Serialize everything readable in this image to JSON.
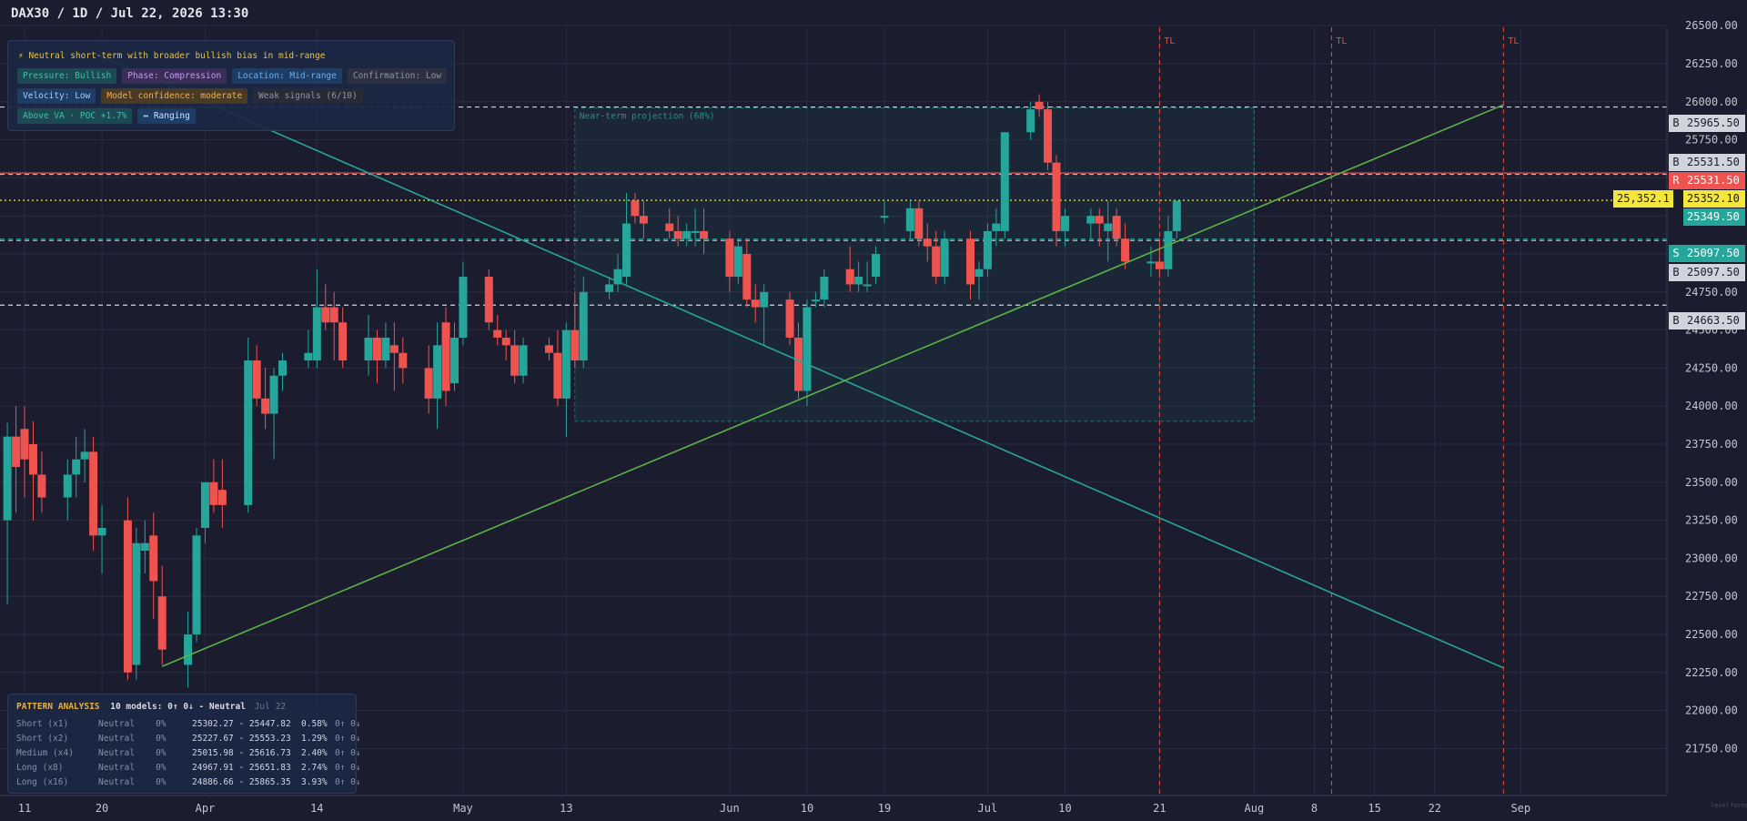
{
  "header": {
    "title": "DAX30 / 1D / Jul 22, 2026 13:30"
  },
  "info_panel": {
    "headline": "⚡ Neutral short-term with broader bullish bias in mid-range",
    "tag_rows": [
      [
        {
          "label": "Pressure: Bullish",
          "style": "pressure"
        },
        {
          "label": "Phase: Compression",
          "style": "phase"
        },
        {
          "label": "Location: Mid-range",
          "style": "location"
        },
        {
          "label": "Confirmation: Low",
          "style": "confirm"
        }
      ],
      [
        {
          "label": "Velocity: Low",
          "style": "velocity"
        },
        {
          "label": "Model confidence: moderate",
          "style": "conf"
        },
        {
          "label": "Weak signals (6/10)",
          "style": "weak"
        }
      ],
      [
        {
          "label": "Above VA · POC +1.7%",
          "style": "va"
        },
        {
          "label": "↔ Ranging",
          "style": "ranging"
        }
      ]
    ]
  },
  "pattern_panel": {
    "title": "PATTERN ANALYSIS",
    "summary": "10 models: 0↑ 0↓ - Neutral",
    "date": "Jul 22",
    "rows": [
      {
        "name": "Short (x1)",
        "direction": "Neutral",
        "pct": "0%",
        "range": "25302.27 - 25447.82",
        "width": "0.58%",
        "arrows": "0↑ 0↓"
      },
      {
        "name": "Short (x2)",
        "direction": "Neutral",
        "pct": "0%",
        "range": "25227.67 - 25553.23",
        "width": "1.29%",
        "arrows": "0↑ 0↓"
      },
      {
        "name": "Medium (x4)",
        "direction": "Neutral",
        "pct": "0%",
        "range": "25015.98 - 25616.73",
        "width": "2.40%",
        "arrows": "0↑ 0↓"
      },
      {
        "name": "Long (x8)",
        "direction": "Neutral",
        "pct": "0%",
        "range": "24967.91 - 25651.83",
        "width": "2.74%",
        "arrows": "0↑ 0↓"
      },
      {
        "name": "Long (x16)",
        "direction": "Neutral",
        "pct": "0%",
        "range": "24886.66 - 25865.35",
        "width": "3.93%",
        "arrows": "0↑ 0↓"
      }
    ]
  },
  "price_labels": [
    {
      "type": "B",
      "value": "25965.50",
      "style": "b"
    },
    {
      "type": "B",
      "value": "25531.50",
      "style": "b"
    },
    {
      "type": "R",
      "value": "25531.50",
      "style": "r"
    },
    {
      "type": "",
      "value": "25352.10",
      "style": "plain"
    },
    {
      "type": "",
      "value": "25349.50",
      "style": "plain"
    },
    {
      "type": "S",
      "value": "25097.50",
      "style": "s"
    },
    {
      "type": "B",
      "value": "25097.50",
      "style": "b"
    },
    {
      "type": "B",
      "value": "24663.50",
      "style": "b"
    }
  ],
  "last_price": "25,352.1",
  "projection_label": "Near-term projection (68%)",
  "tl_labels": [
    "TL",
    "TL",
    "TL"
  ],
  "watermark": "levelforecast.com",
  "chart_data": {
    "type": "candlestick",
    "symbol": "DAX30",
    "timeframe": "1D",
    "y_ticks": [
      21750,
      22000,
      22250,
      22500,
      22750,
      23000,
      23250,
      23500,
      23750,
      24000,
      24250,
      24500,
      24750,
      25000,
      25250,
      25500,
      25750,
      26000,
      26250,
      26500
    ],
    "y_tick_labels": [
      "21750.00",
      "22000.00",
      "22250.00",
      "22500.00",
      "22750.00",
      "23000.00",
      "23250.00",
      "23500.00",
      "23750.00",
      "24000.00",
      "24250.00",
      "24500.00",
      "24750.00",
      "25000.00",
      "25250.00",
      "25500.00",
      "25750.00",
      "26000.00",
      "26250.00",
      "26500.00"
    ],
    "ylim": [
      21550,
      26620
    ],
    "x_labels": [
      {
        "label": "11",
        "date": "2026-03-11"
      },
      {
        "label": "20",
        "date": "2026-03-20"
      },
      {
        "label": "Apr",
        "date": "2026-04-01"
      },
      {
        "label": "14",
        "date": "2026-04-14"
      },
      {
        "label": "May",
        "date": "2026-05-01"
      },
      {
        "label": "13",
        "date": "2026-05-13"
      },
      {
        "label": "Jun",
        "date": "2026-06-01"
      },
      {
        "label": "10",
        "date": "2026-06-10"
      },
      {
        "label": "19",
        "date": "2026-06-19"
      },
      {
        "label": "Jul",
        "date": "2026-07-01"
      },
      {
        "label": "10",
        "date": "2026-07-10"
      },
      {
        "label": "21",
        "date": "2026-07-21"
      },
      {
        "label": "Aug",
        "date": "2026-08-01"
      },
      {
        "label": "8",
        "date": "2026-08-08"
      },
      {
        "label": "15",
        "date": "2026-08-15"
      },
      {
        "label": "22",
        "date": "2026-08-22"
      },
      {
        "label": "Sep",
        "date": "2026-09-01"
      }
    ],
    "candles": [
      {
        "date": "2026-03-09",
        "o": 23250,
        "h": 23890,
        "l": 22700,
        "c": 23800
      },
      {
        "date": "2026-03-10",
        "o": 23800,
        "h": 24000,
        "l": 23300,
        "c": 23600
      },
      {
        "date": "2026-03-11",
        "o": 23850,
        "h": 24000,
        "l": 23400,
        "c": 23650
      },
      {
        "date": "2026-03-12",
        "o": 23750,
        "h": 23900,
        "l": 23250,
        "c": 23550
      },
      {
        "date": "2026-03-13",
        "o": 23550,
        "h": 23700,
        "l": 23300,
        "c": 23400
      },
      {
        "date": "2026-03-16",
        "o": 23400,
        "h": 23650,
        "l": 23250,
        "c": 23550
      },
      {
        "date": "2026-03-17",
        "o": 23550,
        "h": 23800,
        "l": 23400,
        "c": 23650
      },
      {
        "date": "2026-03-18",
        "o": 23650,
        "h": 23850,
        "l": 23500,
        "c": 23700
      },
      {
        "date": "2026-03-19",
        "o": 23700,
        "h": 23800,
        "l": 23050,
        "c": 23150
      },
      {
        "date": "2026-03-20",
        "o": 23150,
        "h": 23350,
        "l": 22900,
        "c": 23200
      },
      {
        "date": "2026-03-23",
        "o": 23250,
        "h": 23400,
        "l": 22200,
        "c": 22250
      },
      {
        "date": "2026-03-24",
        "o": 22300,
        "h": 23200,
        "l": 22200,
        "c": 23100
      },
      {
        "date": "2026-03-25",
        "o": 23050,
        "h": 23250,
        "l": 22900,
        "c": 23100
      },
      {
        "date": "2026-03-26",
        "o": 23150,
        "h": 23300,
        "l": 22600,
        "c": 22850
      },
      {
        "date": "2026-03-27",
        "o": 22750,
        "h": 22950,
        "l": 22300,
        "c": 22400
      },
      {
        "date": "2026-03-30",
        "o": 22300,
        "h": 22650,
        "l": 22150,
        "c": 22500
      },
      {
        "date": "2026-03-31",
        "o": 22500,
        "h": 23200,
        "l": 22450,
        "c": 23150
      },
      {
        "date": "2026-04-01",
        "o": 23200,
        "h": 23500,
        "l": 23100,
        "c": 23500
      },
      {
        "date": "2026-04-02",
        "o": 23500,
        "h": 23650,
        "l": 23300,
        "c": 23350
      },
      {
        "date": "2026-04-03",
        "o": 23450,
        "h": 23650,
        "l": 23200,
        "c": 23350
      },
      {
        "date": "2026-04-06",
        "o": 23350,
        "h": 24450,
        "l": 23300,
        "c": 24300
      },
      {
        "date": "2026-04-07",
        "o": 24300,
        "h": 24400,
        "l": 24000,
        "c": 24050
      },
      {
        "date": "2026-04-08",
        "o": 24050,
        "h": 24250,
        "l": 23850,
        "c": 23950
      },
      {
        "date": "2026-04-09",
        "o": 23950,
        "h": 24250,
        "l": 23650,
        "c": 24200
      },
      {
        "date": "2026-04-10",
        "o": 24200,
        "h": 24350,
        "l": 24100,
        "c": 24300
      },
      {
        "date": "2026-04-13",
        "o": 24300,
        "h": 24500,
        "l": 24250,
        "c": 24350
      },
      {
        "date": "2026-04-14",
        "o": 24300,
        "h": 24900,
        "l": 24250,
        "c": 24650
      },
      {
        "date": "2026-04-15",
        "o": 24650,
        "h": 24800,
        "l": 24500,
        "c": 24550
      },
      {
        "date": "2026-04-16",
        "o": 24650,
        "h": 24750,
        "l": 24300,
        "c": 24550
      },
      {
        "date": "2026-04-17",
        "o": 24550,
        "h": 24650,
        "l": 24250,
        "c": 24300
      },
      {
        "date": "2026-04-20",
        "o": 24300,
        "h": 24600,
        "l": 24200,
        "c": 24450
      },
      {
        "date": "2026-04-21",
        "o": 24450,
        "h": 24500,
        "l": 24150,
        "c": 24300
      },
      {
        "date": "2026-04-22",
        "o": 24300,
        "h": 24550,
        "l": 24250,
        "c": 24450
      },
      {
        "date": "2026-04-23",
        "o": 24400,
        "h": 24550,
        "l": 24100,
        "c": 24350
      },
      {
        "date": "2026-04-24",
        "o": 24350,
        "h": 24450,
        "l": 24150,
        "c": 24250
      },
      {
        "date": "2026-04-27",
        "o": 24250,
        "h": 24400,
        "l": 23950,
        "c": 24050
      },
      {
        "date": "2026-04-28",
        "o": 24050,
        "h": 24550,
        "l": 23850,
        "c": 24400
      },
      {
        "date": "2026-04-29",
        "o": 24550,
        "h": 24650,
        "l": 24000,
        "c": 24100
      },
      {
        "date": "2026-04-30",
        "o": 24150,
        "h": 24550,
        "l": 24100,
        "c": 24450
      },
      {
        "date": "2026-05-01",
        "o": 24450,
        "h": 24950,
        "l": 24400,
        "c": 24850
      },
      {
        "date": "2026-05-04",
        "o": 24850,
        "h": 24900,
        "l": 24500,
        "c": 24550
      },
      {
        "date": "2026-05-05",
        "o": 24500,
        "h": 24600,
        "l": 24400,
        "c": 24450
      },
      {
        "date": "2026-05-06",
        "o": 24450,
        "h": 24500,
        "l": 24300,
        "c": 24400
      },
      {
        "date": "2026-05-07",
        "o": 24400,
        "h": 24500,
        "l": 24150,
        "c": 24200
      },
      {
        "date": "2026-05-08",
        "o": 24200,
        "h": 24450,
        "l": 24150,
        "c": 24400
      },
      {
        "date": "2026-05-11",
        "o": 24400,
        "h": 24450,
        "l": 24300,
        "c": 24350
      },
      {
        "date": "2026-05-12",
        "o": 24350,
        "h": 24500,
        "l": 24000,
        "c": 24050
      },
      {
        "date": "2026-05-13",
        "o": 24050,
        "h": 24550,
        "l": 23800,
        "c": 24500
      },
      {
        "date": "2026-05-14",
        "o": 24500,
        "h": 24750,
        "l": 24250,
        "c": 24300
      },
      {
        "date": "2026-05-15",
        "o": 24300,
        "h": 24850,
        "l": 24250,
        "c": 24750
      },
      {
        "date": "2026-05-18",
        "o": 24750,
        "h": 24850,
        "l": 24700,
        "c": 24800
      },
      {
        "date": "2026-05-19",
        "o": 24800,
        "h": 25000,
        "l": 24750,
        "c": 24900
      },
      {
        "date": "2026-05-20",
        "o": 24850,
        "h": 25400,
        "l": 24800,
        "c": 25200
      },
      {
        "date": "2026-05-21",
        "o": 25350,
        "h": 25400,
        "l": 25200,
        "c": 25250
      },
      {
        "date": "2026-05-22",
        "o": 25250,
        "h": 25350,
        "l": 25100,
        "c": 25200
      },
      {
        "date": "2026-05-25",
        "o": 25200,
        "h": 25300,
        "l": 25100,
        "c": 25150
      },
      {
        "date": "2026-05-26",
        "o": 25150,
        "h": 25250,
        "l": 25050,
        "c": 25100
      },
      {
        "date": "2026-05-27",
        "o": 25100,
        "h": 25200,
        "l": 25050,
        "c": 25150
      },
      {
        "date": "2026-05-28",
        "o": 25150,
        "h": 25300,
        "l": 25050,
        "c": 25150
      },
      {
        "date": "2026-05-29",
        "o": 25150,
        "h": 25300,
        "l": 25000,
        "c": 25100
      },
      {
        "date": "2026-06-01",
        "o": 25100,
        "h": 25150,
        "l": 24750,
        "c": 24850
      },
      {
        "date": "2026-06-02",
        "o": 24850,
        "h": 25100,
        "l": 24800,
        "c": 25050
      },
      {
        "date": "2026-06-03",
        "o": 25000,
        "h": 25100,
        "l": 24650,
        "c": 24700
      },
      {
        "date": "2026-06-04",
        "o": 24700,
        "h": 24800,
        "l": 24550,
        "c": 24650
      },
      {
        "date": "2026-06-05",
        "o": 24650,
        "h": 24800,
        "l": 24400,
        "c": 24750
      },
      {
        "date": "2026-06-08",
        "o": 24700,
        "h": 24750,
        "l": 24400,
        "c": 24450
      },
      {
        "date": "2026-06-09",
        "o": 24450,
        "h": 24550,
        "l": 24050,
        "c": 24100
      },
      {
        "date": "2026-06-10",
        "o": 24100,
        "h": 24700,
        "l": 24000,
        "c": 24650
      },
      {
        "date": "2026-06-11",
        "o": 24700,
        "h": 24750,
        "l": 24650,
        "c": 24700
      },
      {
        "date": "2026-06-12",
        "o": 24700,
        "h": 24900,
        "l": 24650,
        "c": 24850
      },
      {
        "date": "2026-06-15",
        "o": 24900,
        "h": 25050,
        "l": 24750,
        "c": 24800
      },
      {
        "date": "2026-06-16",
        "o": 24800,
        "h": 24950,
        "l": 24750,
        "c": 24850
      },
      {
        "date": "2026-06-17",
        "o": 24800,
        "h": 24950,
        "l": 24750,
        "c": 24800
      },
      {
        "date": "2026-06-18",
        "o": 24850,
        "h": 25050,
        "l": 24800,
        "c": 25000
      },
      {
        "date": "2026-06-19",
        "o": 25250,
        "h": 25350,
        "l": 25200,
        "c": 25250
      },
      {
        "date": "2026-06-22",
        "o": 25150,
        "h": 25350,
        "l": 25100,
        "c": 25300
      },
      {
        "date": "2026-06-23",
        "o": 25300,
        "h": 25350,
        "l": 25050,
        "c": 25100
      },
      {
        "date": "2026-06-24",
        "o": 25100,
        "h": 25200,
        "l": 24950,
        "c": 25050
      },
      {
        "date": "2026-06-25",
        "o": 25050,
        "h": 25150,
        "l": 24800,
        "c": 24850
      },
      {
        "date": "2026-06-26",
        "o": 24850,
        "h": 25150,
        "l": 24800,
        "c": 25100
      },
      {
        "date": "2026-06-29",
        "o": 25100,
        "h": 25150,
        "l": 24700,
        "c": 24800
      },
      {
        "date": "2026-06-30",
        "o": 24850,
        "h": 24950,
        "l": 24700,
        "c": 24900
      },
      {
        "date": "2026-07-01",
        "o": 24900,
        "h": 25200,
        "l": 24850,
        "c": 25150
      },
      {
        "date": "2026-07-02",
        "o": 25150,
        "h": 25300,
        "l": 25050,
        "c": 25200
      },
      {
        "date": "2026-07-03",
        "o": 25150,
        "h": 25800,
        "l": 25100,
        "c": 25800
      },
      {
        "date": "2026-07-06",
        "o": 25800,
        "h": 26000,
        "l": 25750,
        "c": 25950
      },
      {
        "date": "2026-07-07",
        "o": 26000,
        "h": 26050,
        "l": 25900,
        "c": 25950
      },
      {
        "date": "2026-07-08",
        "o": 25950,
        "h": 26000,
        "l": 25550,
        "c": 25600
      },
      {
        "date": "2026-07-09",
        "o": 25600,
        "h": 25650,
        "l": 25050,
        "c": 25150
      },
      {
        "date": "2026-07-10",
        "o": 25150,
        "h": 25300,
        "l": 25050,
        "c": 25250
      },
      {
        "date": "2026-07-13",
        "o": 25200,
        "h": 25300,
        "l": 25100,
        "c": 25250
      },
      {
        "date": "2026-07-14",
        "o": 25250,
        "h": 25300,
        "l": 25050,
        "c": 25200
      },
      {
        "date": "2026-07-15",
        "o": 25150,
        "h": 25350,
        "l": 24950,
        "c": 25200
      },
      {
        "date": "2026-07-16",
        "o": 25250,
        "h": 25300,
        "l": 25050,
        "c": 25100
      },
      {
        "date": "2026-07-17",
        "o": 25100,
        "h": 25200,
        "l": 24900,
        "c": 24950
      },
      {
        "date": "2026-07-20",
        "o": 24950,
        "h": 25050,
        "l": 24850,
        "c": 24950
      },
      {
        "date": "2026-07-21",
        "o": 24950,
        "h": 25100,
        "l": 24850,
        "c": 24900
      },
      {
        "date": "2026-07-22",
        "o": 24900,
        "h": 25250,
        "l": 24850,
        "c": 25150
      },
      {
        "date": "2026-07-23",
        "o": 25150,
        "h": 25350,
        "l": 25100,
        "c": 25350
      }
    ],
    "horizontal_levels": [
      {
        "price": 25965.5,
        "kind": "B",
        "color": "#d1d4dc",
        "dash": true
      },
      {
        "price": 25531.5,
        "kind": "R",
        "color": "#ef5350",
        "dash": false
      },
      {
        "price": 25352.1,
        "kind": "last",
        "color": "#f5e63c",
        "dash": true
      },
      {
        "price": 25097.5,
        "kind": "S",
        "color": "#26a69a",
        "dash": true
      },
      {
        "price": 24663.5,
        "kind": "B",
        "color": "#d1d4dc",
        "dash": true
      }
    ],
    "trendlines": [
      {
        "color": "#26a69a",
        "from": {
          "date": "2026-03-19",
          "price": 26320
        },
        "to": {
          "date": "2026-08-30",
          "price": 22280
        }
      },
      {
        "color": "#5cb346",
        "from": {
          "date": "2026-03-27",
          "price": 22290
        },
        "to": {
          "date": "2026-08-30",
          "price": 25980
        }
      }
    ],
    "projection_box": {
      "from": "2026-05-14",
      "to": "2026-08-01",
      "low": 23900,
      "high": 25960,
      "probability": "68%"
    },
    "time_lines": [
      {
        "date": "2026-07-21"
      },
      {
        "date": "2026-08-10"
      },
      {
        "date": "2026-08-30"
      }
    ],
    "colors": {
      "up": "#26a69a",
      "down": "#ef5350",
      "background": "#1b1c2e",
      "grid": "#2a2c40"
    }
  }
}
